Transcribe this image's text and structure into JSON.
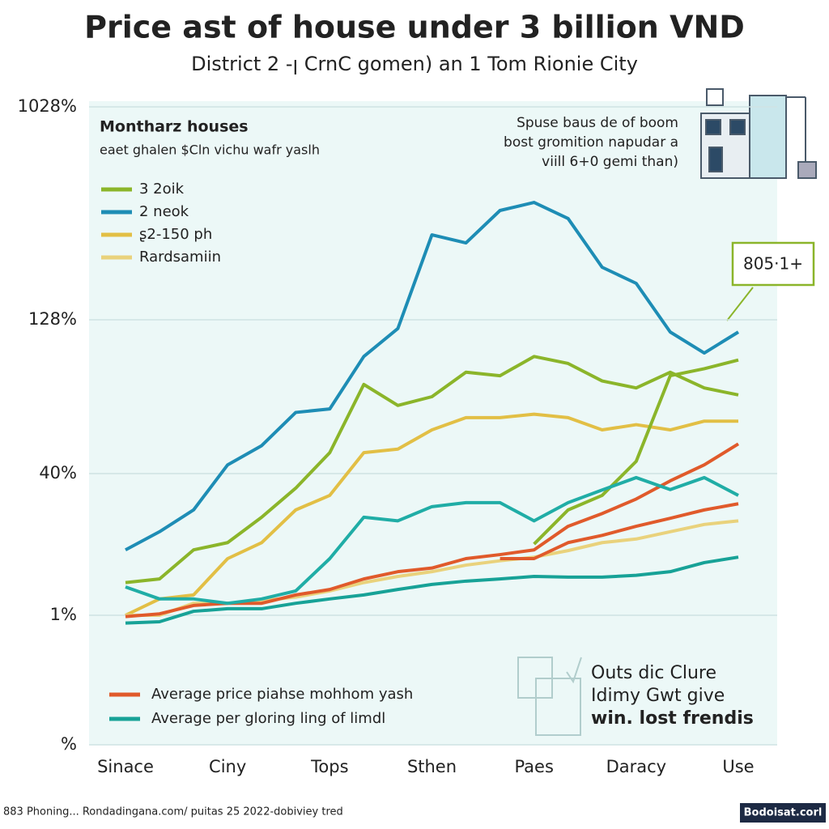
{
  "chart_data": {
    "type": "line",
    "title": "Price ast of house under 3 billion VND",
    "subtitle": "District 2 -ꞁ CrnC gomen) an 1 Tom Rionie City",
    "legend_title": "Montharz houses",
    "legend_subtitle": "eaet ghalen $Cln vichu wafr yaslh",
    "annotation_lines": [
      "Spuse baus de of boom",
      "bost gromition napudar a",
      "viill 6+0 gemi than)"
    ],
    "callout": "805·1+",
    "badge_lines": [
      "Outs dic Clure",
      "Idimy Gwt give",
      "win. lost frendis"
    ],
    "source": "883 Phoning... Rondadingana.com/ puitas 25 2022-dobiviey tred",
    "watermark": "Bodoisat.corl",
    "categories": [
      "Sinace",
      null,
      null,
      "Ciny",
      null,
      null,
      "Tops",
      null,
      null,
      "Sthen",
      null,
      null,
      "Paes",
      null,
      null,
      "Daracy",
      null,
      null,
      "Use"
    ],
    "ylim": [
      0,
      1028
    ],
    "yticks": [
      {
        "value": 1028,
        "label": "1028%"
      },
      {
        "value": 128,
        "label": "128%"
      },
      {
        "value": 40,
        "label": "40%"
      },
      {
        "value": 1,
        "label": "1%"
      },
      {
        "value": 0,
        "label": "%"
      }
    ],
    "grid": true,
    "series": [
      {
        "name": "3 2oik",
        "color": "#8bb52a",
        "values": [
          10,
          11,
          19,
          21,
          28,
          36,
          52,
          91,
          79,
          84,
          98,
          96,
          107,
          103,
          93,
          89,
          98,
          89,
          85
        ]
      },
      {
        "name": "2 neok",
        "color": "#1e8db5",
        "values": [
          19,
          24,
          30,
          45,
          56,
          75,
          77,
          107,
          123,
          487,
          453,
          590,
          624,
          556,
          350,
          282,
          121,
          109,
          121
        ]
      },
      {
        "name": "ʂ2-150 ph",
        "color": "#e2bf45",
        "values": [
          1,
          5.5,
          6.6,
          16.6,
          21,
          30,
          34,
          52,
          54,
          65,
          72,
          72,
          74,
          72,
          65,
          68,
          65,
          70,
          70
        ]
      },
      {
        "name": "Rardsamiin",
        "color": "#e9d27c",
        "values": [
          1,
          1,
          4.3,
          4.3,
          5,
          6,
          7.7,
          10,
          11.7,
          13,
          14.8,
          16,
          17,
          18.8,
          21,
          22,
          24,
          26,
          27
        ]
      },
      {
        "name": "Average price piahse mohhom yash",
        "color": "#e05a2b",
        "values": [
          0.99,
          1.4,
          3.7,
          4.3,
          4.3,
          6.6,
          8.1,
          11,
          13,
          14,
          16.6,
          17.7,
          19,
          25.5,
          29,
          33,
          38,
          45,
          57
        ]
      },
      {
        "name": "Average per gloring ling of limdl",
        "color": "#17a297",
        "values": [
          0.94,
          0.95,
          2.1,
          2.8,
          2.8,
          4.3,
          5.5,
          6.6,
          8.1,
          9.5,
          10.4,
          11,
          11.7,
          11.5,
          11.5,
          12,
          13,
          15.5,
          17
        ]
      },
      {
        "color": "#8bb52a",
        "values": [
          null,
          null,
          null,
          null,
          null,
          null,
          null,
          null,
          null,
          null,
          null,
          null,
          20.6,
          30,
          34,
          47,
          96,
          100,
          105
        ]
      },
      {
        "color": "#20ada6",
        "values": [
          8.8,
          5.5,
          5.5,
          4.3,
          5.5,
          7.7,
          16.6,
          28,
          27,
          30.9,
          32,
          32,
          27,
          32,
          35.5,
          38.9,
          35.6,
          38.9,
          34
        ]
      },
      {
        "color": "#e05a2b",
        "values": [
          null,
          null,
          null,
          null,
          null,
          null,
          null,
          null,
          null,
          null,
          null,
          16.6,
          16.6,
          21,
          23,
          25.5,
          27.7,
          30,
          31.7
        ]
      }
    ]
  }
}
